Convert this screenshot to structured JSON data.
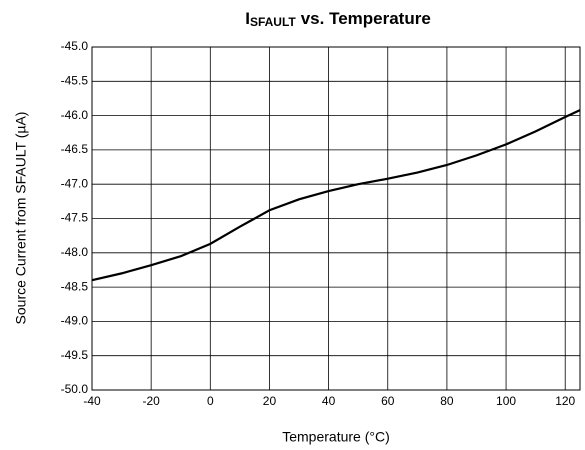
{
  "chart_data": {
    "type": "line",
    "title": [
      "I",
      "SFAULT",
      "vs. Temperature"
    ],
    "xlabel": "Temperature (°C)",
    "ylabel": "Source Current from SFAULT (µA)",
    "x": [
      -40,
      -30,
      -20,
      -10,
      0,
      10,
      20,
      30,
      40,
      50,
      60,
      70,
      80,
      90,
      100,
      110,
      120,
      125
    ],
    "series": [
      {
        "color": "#000000",
        "values": [
          -48.4,
          -48.3,
          -48.18,
          -48.05,
          -47.87,
          -47.62,
          -47.38,
          -47.22,
          -47.1,
          -47.0,
          -46.92,
          -46.83,
          -46.72,
          -46.58,
          -46.42,
          -46.23,
          -46.02,
          -45.92
        ]
      }
    ],
    "xlim": [
      -40,
      125
    ],
    "xticks": [
      -40,
      -20,
      0,
      20,
      40,
      60,
      80,
      100,
      120
    ],
    "ylim": [
      -50,
      -45
    ],
    "yticks": [
      {
        "value": -50,
        "label": "-50.0"
      },
      -49.5,
      {
        "value": -49,
        "label": "-49.0"
      },
      -48.5,
      {
        "value": -48,
        "label": "-48.0"
      },
      -47.5,
      {
        "value": -47,
        "label": "-47.0"
      },
      -46.5,
      {
        "value": -46,
        "label": "-46.0"
      },
      -45.5,
      {
        "value": -45,
        "label": "-45.0"
      }
    ],
    "grid": true
  }
}
